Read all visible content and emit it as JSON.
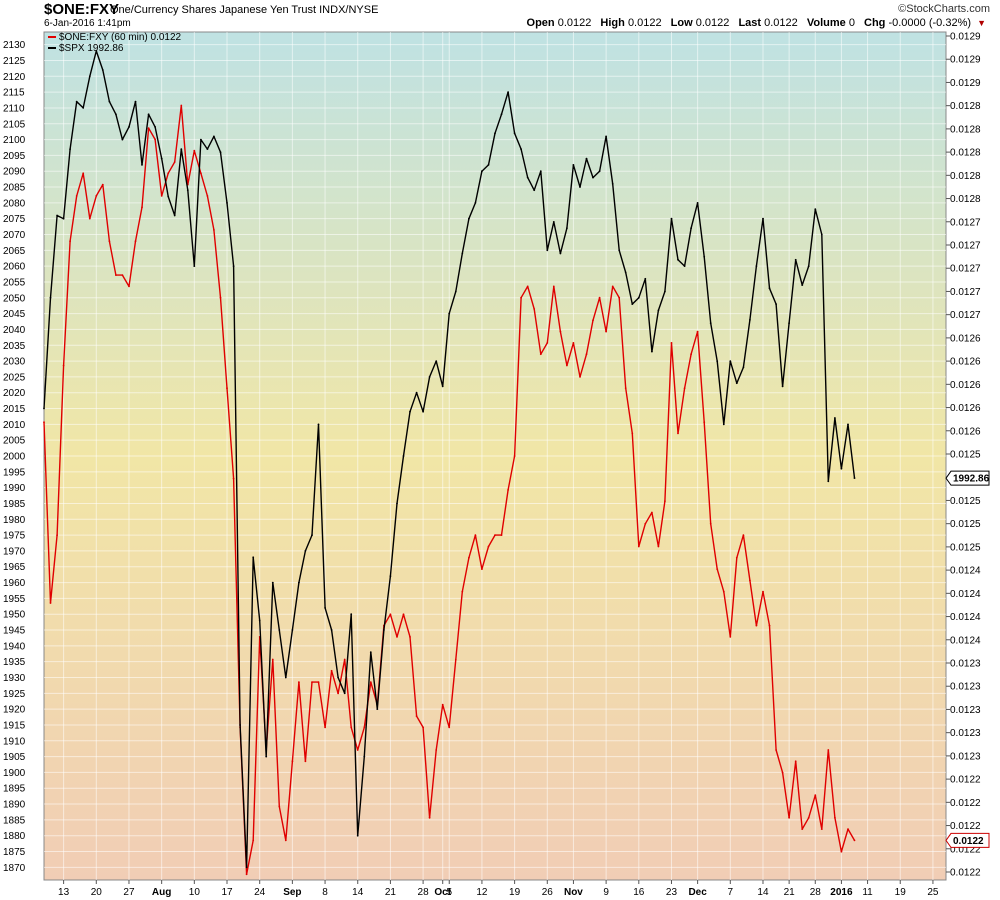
{
  "header": {
    "symbol": "$ONE:FXY",
    "description": "One/Currency Shares Japanese Yen Trust INDX/NYSE",
    "datetime": "6-Jan-2016 1:41pm",
    "brand": "©StockCharts.com",
    "open_label": "Open",
    "open": "0.0122",
    "high_label": "High",
    "high": "0.0122",
    "low_label": "Low",
    "low": "0.0122",
    "last_label": "Last",
    "last": "0.0122",
    "volume_label": "Volume",
    "volume": "0",
    "chg_label": "Chg",
    "chg": "-0.0000 (-0.32%)"
  },
  "colors": {
    "fxy": "#e00000",
    "spx": "#000000",
    "bg_top": "#bfe2e3",
    "bg_mid": "#f1e6a6",
    "bg_bottom": "#f1cdb5"
  },
  "chart_data": {
    "type": "line",
    "legend": [
      "$ONE:FXY (60 min) 0.0122",
      "$SPX 1992.86"
    ],
    "left_axis_ticks": [
      "2130",
      "2125",
      "2120",
      "2115",
      "2110",
      "2105",
      "2100",
      "2095",
      "2090",
      "2085",
      "2080",
      "2075",
      "2070",
      "2065",
      "2060",
      "2055",
      "2050",
      "2045",
      "2040",
      "2035",
      "2030",
      "2025",
      "2020",
      "2015",
      "2010",
      "2005",
      "2000",
      "1995",
      "1990",
      "1985",
      "1980",
      "1975",
      "1970",
      "1965",
      "1960",
      "1955",
      "1950",
      "1945",
      "1940",
      "1935",
      "1930",
      "1925",
      "1920",
      "1915",
      "1910",
      "1905",
      "1900",
      "1895",
      "1890",
      "1885",
      "1880",
      "1875",
      "1870"
    ],
    "right_axis_ticks": [
      "0.0129",
      "0.0129",
      "0.0129",
      "0.0128",
      "0.0128",
      "0.0128",
      "0.0128",
      "0.0128",
      "0.0127",
      "0.0127",
      "0.0127",
      "0.0127",
      "0.0127",
      "0.0126",
      "0.0126",
      "0.0126",
      "0.0126",
      "0.0126",
      "0.0125",
      "0.0125",
      "0.0125",
      "0.0125",
      "0.0125",
      "0.0124",
      "0.0124",
      "0.0124",
      "0.0124",
      "0.0123",
      "0.0123",
      "0.0123",
      "0.0123",
      "0.0123",
      "0.0122",
      "0.0122",
      "0.0122",
      "0.0122",
      "0.0122"
    ],
    "x_ticks": [
      {
        "label": "13",
        "bold": false
      },
      {
        "label": "20",
        "bold": false
      },
      {
        "label": "27",
        "bold": false
      },
      {
        "label": "Aug",
        "bold": true
      },
      {
        "label": "10",
        "bold": false
      },
      {
        "label": "17",
        "bold": false
      },
      {
        "label": "24",
        "bold": false
      },
      {
        "label": "Sep",
        "bold": true
      },
      {
        "label": "8",
        "bold": false
      },
      {
        "label": "14",
        "bold": false
      },
      {
        "label": "21",
        "bold": false
      },
      {
        "label": "28",
        "bold": false
      },
      {
        "label": "Oct",
        "bold": true
      },
      {
        "label": "5",
        "bold": false
      },
      {
        "label": "12",
        "bold": false
      },
      {
        "label": "19",
        "bold": false
      },
      {
        "label": "26",
        "bold": false
      },
      {
        "label": "Nov",
        "bold": true
      },
      {
        "label": "9",
        "bold": false
      },
      {
        "label": "16",
        "bold": false
      },
      {
        "label": "23",
        "bold": false
      },
      {
        "label": "Dec",
        "bold": true
      },
      {
        "label": "7",
        "bold": false
      },
      {
        "label": "14",
        "bold": false
      },
      {
        "label": "21",
        "bold": false
      },
      {
        "label": "28",
        "bold": false
      },
      {
        "label": "2016",
        "bold": true
      },
      {
        "label": "11",
        "bold": false
      },
      {
        "label": "19",
        "bold": false
      },
      {
        "label": "25",
        "bold": false
      }
    ],
    "x_tick_trading_days": [
      3,
      8,
      13,
      18,
      23,
      28,
      33,
      38,
      43,
      48,
      53,
      58,
      61,
      62,
      67,
      72,
      77,
      81,
      86,
      91,
      96,
      100,
      105,
      110,
      114,
      118,
      122,
      126,
      131,
      136
    ],
    "x_range_trading_days": [
      0,
      138
    ],
    "series": [
      {
        "name": "$SPX",
        "axis": "left",
        "ylim": [
          1866,
          2134
        ],
        "x": [
          0,
          1,
          2,
          3,
          4,
          5,
          6,
          7,
          8,
          9,
          10,
          11,
          12,
          13,
          14,
          15,
          16,
          17,
          18,
          19,
          20,
          21,
          22,
          23,
          24,
          25,
          26,
          27,
          28,
          29,
          30,
          31,
          32,
          33,
          34,
          35,
          36,
          37,
          38,
          39,
          40,
          41,
          42,
          43,
          44,
          45,
          46,
          47,
          48,
          49,
          50,
          51,
          52,
          53,
          54,
          55,
          56,
          57,
          58,
          59,
          60,
          61,
          62,
          63,
          64,
          65,
          66,
          67,
          68,
          69,
          70,
          71,
          72,
          73,
          74,
          75,
          76,
          77,
          78,
          79,
          80,
          81,
          82,
          83,
          84,
          85,
          86,
          87,
          88,
          89,
          90,
          91,
          92,
          93,
          94,
          95,
          96,
          97,
          98,
          99,
          100,
          101,
          102,
          103,
          104,
          105,
          106,
          107,
          108,
          109,
          110,
          111,
          112,
          113,
          114,
          115,
          116,
          117,
          118,
          119,
          120,
          121,
          122,
          123,
          124
        ],
        "values": [
          2015,
          2050,
          2076,
          2075,
          2097,
          2112,
          2110,
          2120,
          2128,
          2122,
          2112,
          2108,
          2100,
          2104,
          2112,
          2092,
          2108,
          2104,
          2094,
          2082,
          2076,
          2097,
          2084,
          2060,
          2100,
          2097,
          2101,
          2096,
          2080,
          2060,
          1915,
          1870,
          1968,
          1948,
          1905,
          1960,
          1945,
          1930,
          1945,
          1960,
          1970,
          1975,
          2010,
          1952,
          1945,
          1930,
          1925,
          1950,
          1880,
          1905,
          1938,
          1920,
          1945,
          1962,
          1985,
          2000,
          2014,
          2020,
          2014,
          2025,
          2030,
          2022,
          2045,
          2052,
          2064,
          2075,
          2080,
          2090,
          2092,
          2102,
          2108,
          2115,
          2102,
          2097,
          2088,
          2084,
          2090,
          2065,
          2074,
          2064,
          2072,
          2092,
          2085,
          2094,
          2088,
          2090,
          2101,
          2086,
          2065,
          2058,
          2048,
          2050,
          2056,
          2033,
          2046,
          2052,
          2075,
          2062,
          2060,
          2072,
          2080,
          2063,
          2042,
          2030,
          2010,
          2030,
          2023,
          2028,
          2043,
          2060,
          2075,
          2053,
          2048,
          2022,
          2042,
          2062,
          2054,
          2060,
          2078,
          2070,
          1992,
          2012,
          1996,
          2010,
          1993
        ]
      },
      {
        "name": "$ONE:FXY",
        "axis": "right",
        "ylim": [
          0.012185,
          0.012935
        ],
        "x": [
          0,
          1,
          2,
          3,
          4,
          5,
          6,
          7,
          8,
          9,
          10,
          11,
          12,
          13,
          14,
          15,
          16,
          17,
          18,
          19,
          20,
          21,
          22,
          23,
          24,
          25,
          26,
          27,
          28,
          29,
          30,
          31,
          32,
          33,
          34,
          35,
          36,
          37,
          38,
          39,
          40,
          41,
          42,
          43,
          44,
          45,
          46,
          47,
          48,
          49,
          50,
          51,
          52,
          53,
          54,
          55,
          56,
          57,
          58,
          59,
          60,
          61,
          62,
          63,
          64,
          65,
          66,
          67,
          68,
          69,
          70,
          71,
          72,
          73,
          74,
          75,
          76,
          77,
          78,
          79,
          80,
          81,
          82,
          83,
          84,
          85,
          86,
          87,
          88,
          89,
          90,
          91,
          92,
          93,
          94,
          95,
          96,
          97,
          98,
          99,
          100,
          101,
          102,
          103,
          104,
          105,
          106,
          107,
          108,
          109,
          110,
          111,
          112,
          113,
          114,
          115,
          116,
          117,
          118,
          119,
          120,
          121,
          122,
          123,
          124
        ],
        "values": [
          0.01259,
          0.01243,
          0.01249,
          0.01264,
          0.01275,
          0.01279,
          0.01281,
          0.01277,
          0.01279,
          0.0128,
          0.01275,
          0.01272,
          0.01272,
          0.01271,
          0.01275,
          0.01278,
          0.01285,
          0.01284,
          0.01279,
          0.01281,
          0.01282,
          0.01287,
          0.0128,
          0.01283,
          0.01281,
          0.01279,
          0.01276,
          0.0127,
          0.01262,
          0.01254,
          0.01232,
          0.01219,
          0.01222,
          0.0124,
          0.0123,
          0.01238,
          0.01225,
          0.01222,
          0.01229,
          0.01236,
          0.01229,
          0.01236,
          0.01236,
          0.01232,
          0.01237,
          0.01235,
          0.01238,
          0.01232,
          0.0123,
          0.01232,
          0.01236,
          0.01234,
          0.01241,
          0.01242,
          0.0124,
          0.01242,
          0.0124,
          0.01233,
          0.01232,
          0.01224,
          0.0123,
          0.01234,
          0.01232,
          0.01238,
          0.01244,
          0.01247,
          0.01249,
          0.01246,
          0.01248,
          0.01249,
          0.01249,
          0.01253,
          0.01256,
          0.0127,
          0.01271,
          0.01269,
          0.01265,
          0.01266,
          0.01271,
          0.01267,
          0.01264,
          0.01266,
          0.01263,
          0.01265,
          0.01268,
          0.0127,
          0.01267,
          0.01271,
          0.0127,
          0.01262,
          0.01258,
          0.01248,
          0.0125,
          0.01251,
          0.01248,
          0.01252,
          0.01266,
          0.01258,
          0.01262,
          0.01265,
          0.01267,
          0.01259,
          0.0125,
          0.01246,
          0.01244,
          0.0124,
          0.01247,
          0.01249,
          0.01245,
          0.01241,
          0.01244,
          0.01241,
          0.0123,
          0.01228,
          0.01224,
          0.01229,
          0.01223,
          0.01224,
          0.01226,
          0.01223,
          0.0123,
          0.01224,
          0.01221,
          0.01223,
          0.01222
        ]
      }
    ],
    "last_value_labels": {
      "spx": "1992.86",
      "fxy": "0.0122"
    },
    "grid": true
  }
}
